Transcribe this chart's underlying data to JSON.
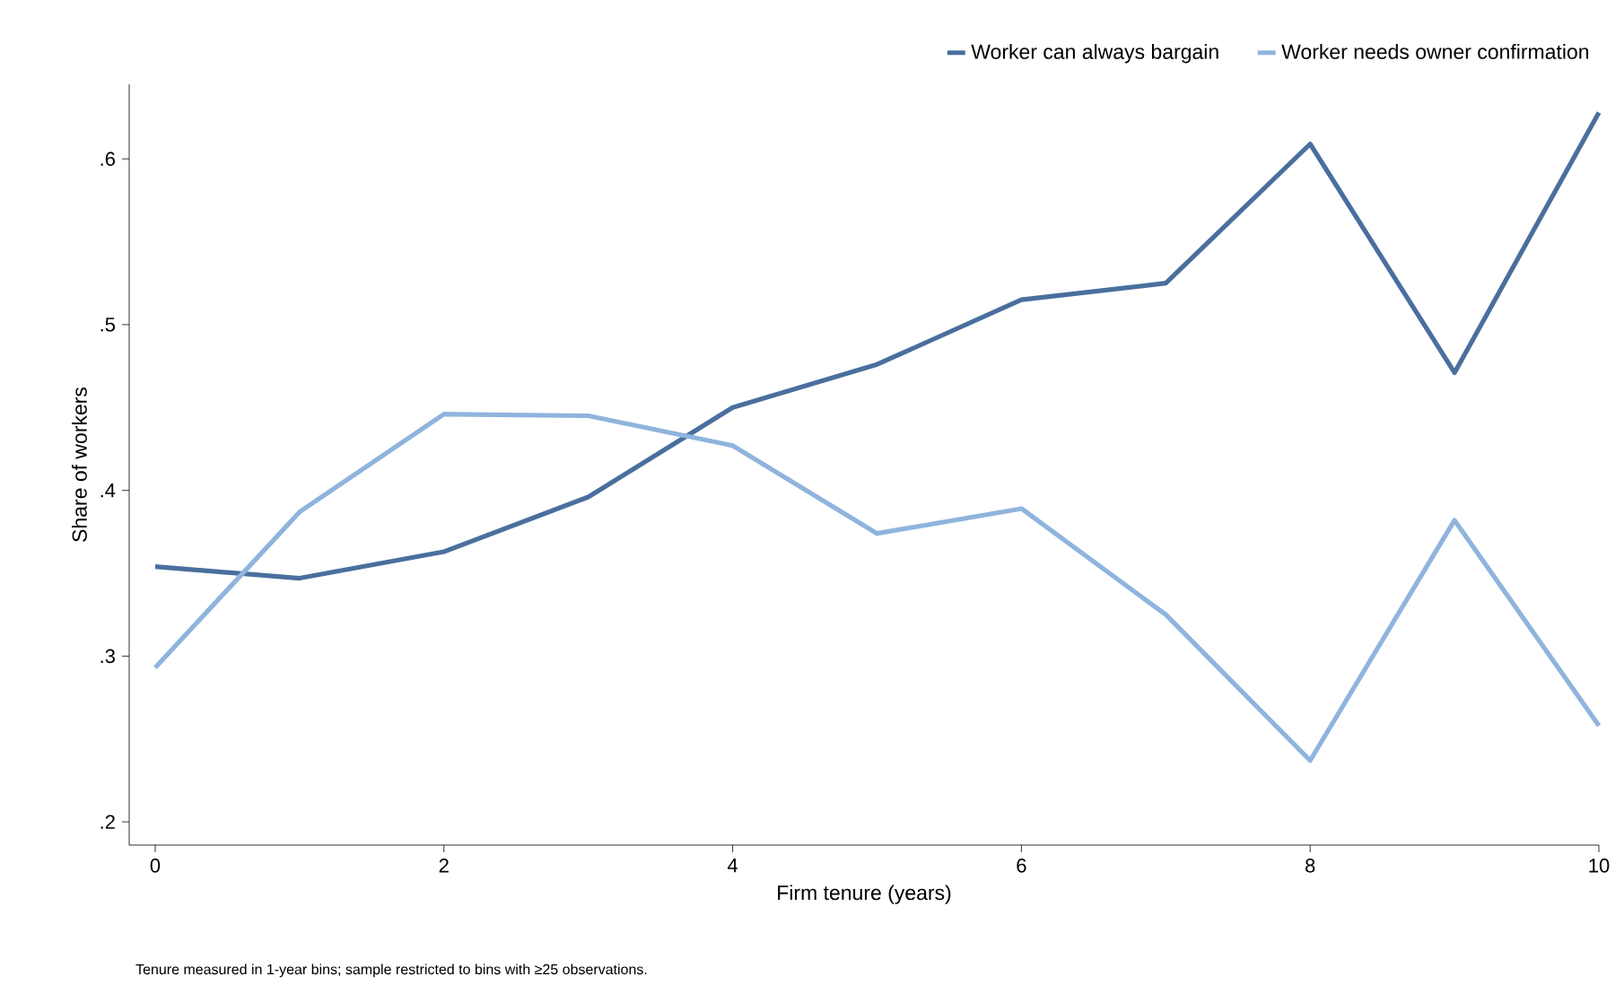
{
  "chart_data": {
    "type": "line",
    "xlabel": "Firm tenure (years)",
    "ylabel": "Share of workers",
    "annotations": [
      "Tenure measured in 1-year bins; sample restricted to bins with ≥25 observations."
    ],
    "x": [
      0,
      1,
      2,
      3,
      4,
      5,
      6,
      7,
      8,
      9,
      10
    ],
    "series": [
      {
        "name": "Worker can always bargain",
        "color": "#4a6f9e",
        "values": [
          0.354,
          0.347,
          0.363,
          0.396,
          0.45,
          0.476,
          0.515,
          0.525,
          0.609,
          0.471,
          0.628
        ]
      },
      {
        "name": "Worker needs owner confirmation",
        "color": "#8fb4dd",
        "values": [
          0.293,
          0.387,
          0.446,
          0.445,
          0.427,
          0.374,
          0.389,
          0.325,
          0.237,
          0.382,
          0.258
        ]
      }
    ],
    "xlim": [
      -0.18,
      10
    ],
    "ylim": [
      0.186,
      0.645
    ],
    "xticks": [
      0,
      2,
      4,
      6,
      8,
      10
    ],
    "yticks": [
      {
        "value": 0.2,
        "label": ".2"
      },
      {
        "value": 0.3,
        "label": ".3"
      },
      {
        "value": 0.4,
        "label": ".4"
      },
      {
        "value": 0.5,
        "label": ".5"
      },
      {
        "value": 0.6,
        "label": ".6"
      }
    ],
    "grid": false,
    "legend": "top right",
    "marker": "none",
    "line_style": "solid"
  }
}
